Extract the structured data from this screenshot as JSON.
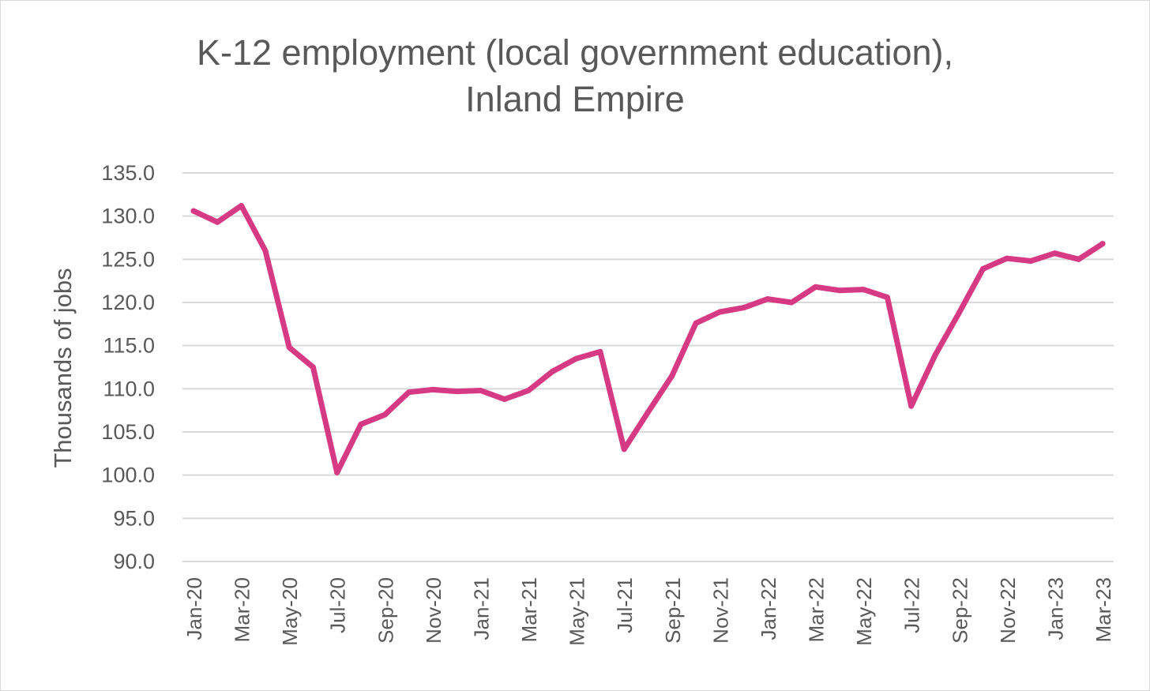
{
  "chart_data": {
    "type": "line",
    "title_lines": [
      "K-12 employment (local government education),",
      "Inland Empire"
    ],
    "xlabel": "",
    "ylabel": "Thousands of jobs",
    "ylim": [
      90,
      135
    ],
    "yticks": [
      "90.0",
      "95.0",
      "100.0",
      "105.0",
      "110.0",
      "115.0",
      "120.0",
      "125.0",
      "130.0",
      "135.0"
    ],
    "grid": true,
    "legend": "none",
    "line_color": "#d63a84",
    "categories": [
      "Jan-20",
      "Feb-20",
      "Mar-20",
      "Apr-20",
      "May-20",
      "Jun-20",
      "Jul-20",
      "Aug-20",
      "Sep-20",
      "Oct-20",
      "Nov-20",
      "Dec-20",
      "Jan-21",
      "Feb-21",
      "Mar-21",
      "Apr-21",
      "May-21",
      "Jun-21",
      "Jul-21",
      "Aug-21",
      "Sep-21",
      "Oct-21",
      "Nov-21",
      "Dec-21",
      "Jan-22",
      "Feb-22",
      "Mar-22",
      "Apr-22",
      "May-22",
      "Jun-22",
      "Jul-22",
      "Aug-22",
      "Sep-22",
      "Oct-22",
      "Nov-22",
      "Dec-22",
      "Jan-23",
      "Feb-23",
      "Mar-23"
    ],
    "tick_labels": [
      "Jan-20",
      "Mar-20",
      "May-20",
      "Jul-20",
      "Sep-20",
      "Nov-20",
      "Jan-21",
      "Mar-21",
      "May-21",
      "Jul-21",
      "Sep-21",
      "Nov-21",
      "Jan-22",
      "Mar-22",
      "May-22",
      "Jul-22",
      "Sep-22",
      "Nov-22",
      "Jan-23",
      "Mar-23"
    ],
    "series": [
      {
        "values": [
          130.6,
          129.3,
          131.2,
          126.0,
          114.8,
          112.5,
          100.3,
          105.9,
          107.0,
          109.6,
          109.9,
          109.7,
          109.8,
          108.8,
          109.8,
          112.0,
          113.5,
          114.3,
          103.0,
          107.3,
          111.5,
          117.6,
          118.9,
          119.4,
          120.4,
          120.0,
          121.8,
          121.4,
          121.5,
          120.6,
          108.0,
          113.9,
          118.8,
          123.9,
          125.1,
          124.8,
          125.7,
          125.0,
          126.8
        ]
      }
    ]
  }
}
